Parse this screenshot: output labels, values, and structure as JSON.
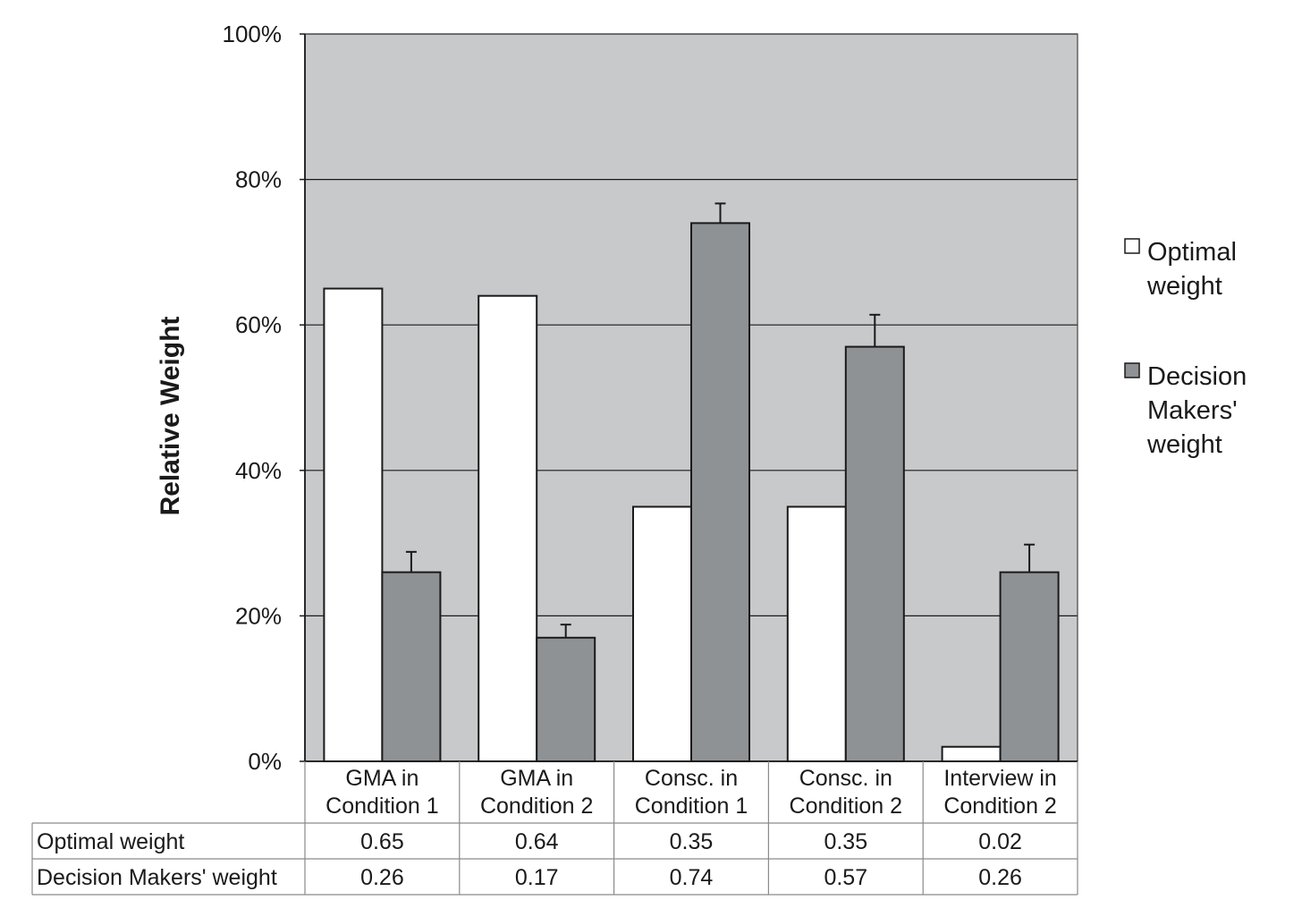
{
  "chart_data": {
    "type": "bar",
    "ylabel": "Relative Weight",
    "ylim": [
      0,
      1
    ],
    "yticks": [
      0,
      0.2,
      0.4,
      0.6,
      0.8,
      1.0
    ],
    "ytick_labels": [
      "0%",
      "20%",
      "40%",
      "60%",
      "80%",
      "100%"
    ],
    "categories": [
      [
        "GMA in",
        "Condition 1"
      ],
      [
        "GMA in",
        "Condition 2"
      ],
      [
        "Consc. in",
        "Condition 1"
      ],
      [
        "Consc. in",
        "Condition 2"
      ],
      [
        "Interview in",
        "Condition 2"
      ]
    ],
    "series": [
      {
        "name": "Optimal weight",
        "legend_lines": [
          "Optimal",
          "weight"
        ],
        "color": "#ffffff",
        "values": [
          0.65,
          0.64,
          0.35,
          0.35,
          0.02
        ],
        "labels": [
          "0.65",
          "0.64",
          "0.35",
          "0.35",
          "0.02"
        ]
      },
      {
        "name": "Decision Makers' weight",
        "legend_lines": [
          "Decision",
          "Makers'",
          "weight"
        ],
        "color": "#8f9294",
        "values": [
          0.26,
          0.17,
          0.74,
          0.57,
          0.26
        ],
        "labels": [
          "0.26",
          "0.17",
          "0.74",
          "0.57",
          "0.26"
        ],
        "error_upper": [
          0.288,
          0.188,
          0.767,
          0.614,
          0.298
        ]
      }
    ],
    "grid": true,
    "legend_position": "right",
    "plot_background": "#c8c9cb",
    "data_table": true
  }
}
